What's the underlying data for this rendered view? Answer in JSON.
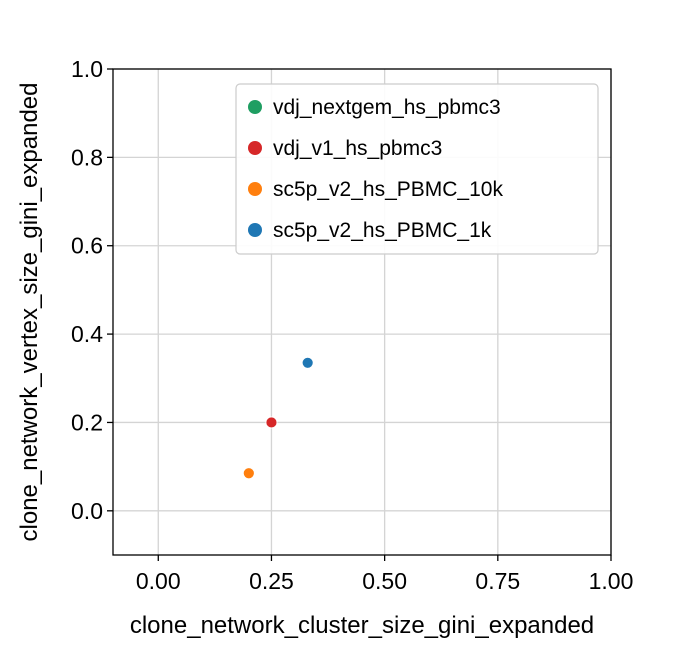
{
  "chart_data": {
    "type": "scatter",
    "xlabel": "clone_network_cluster_size_gini_expanded",
    "ylabel": "clone_network_vertex_size_gini_expanded",
    "xlim": [
      -0.1,
      1.0
    ],
    "ylim": [
      -0.1,
      1.0
    ],
    "x_ticks": [
      "0.00",
      "0.25",
      "0.50",
      "0.75",
      "1.00"
    ],
    "x_tick_values": [
      0.0,
      0.25,
      0.5,
      0.75,
      1.0
    ],
    "y_ticks": [
      "0.0",
      "0.2",
      "0.4",
      "0.6",
      "0.8",
      "1.0"
    ],
    "y_tick_values": [
      0.0,
      0.2,
      0.4,
      0.6,
      0.8,
      1.0
    ],
    "grid": true,
    "legend_position": "top-right",
    "series": [
      {
        "name": "vdj_nextgem_hs_pbmc3",
        "color": "#1f9e62",
        "points": [
          {
            "x": 0.25,
            "y": 0.2
          }
        ]
      },
      {
        "name": "vdj_v1_hs_pbmc3",
        "color": "#d62728",
        "points": [
          {
            "x": 0.25,
            "y": 0.2
          }
        ]
      },
      {
        "name": "sc5p_v2_hs_PBMC_10k",
        "color": "#ff7f0e",
        "points": [
          {
            "x": 0.2,
            "y": 0.085
          }
        ]
      },
      {
        "name": "sc5p_v2_hs_PBMC_1k",
        "color": "#1f77b4",
        "points": [
          {
            "x": 0.33,
            "y": 0.335
          }
        ]
      }
    ]
  }
}
